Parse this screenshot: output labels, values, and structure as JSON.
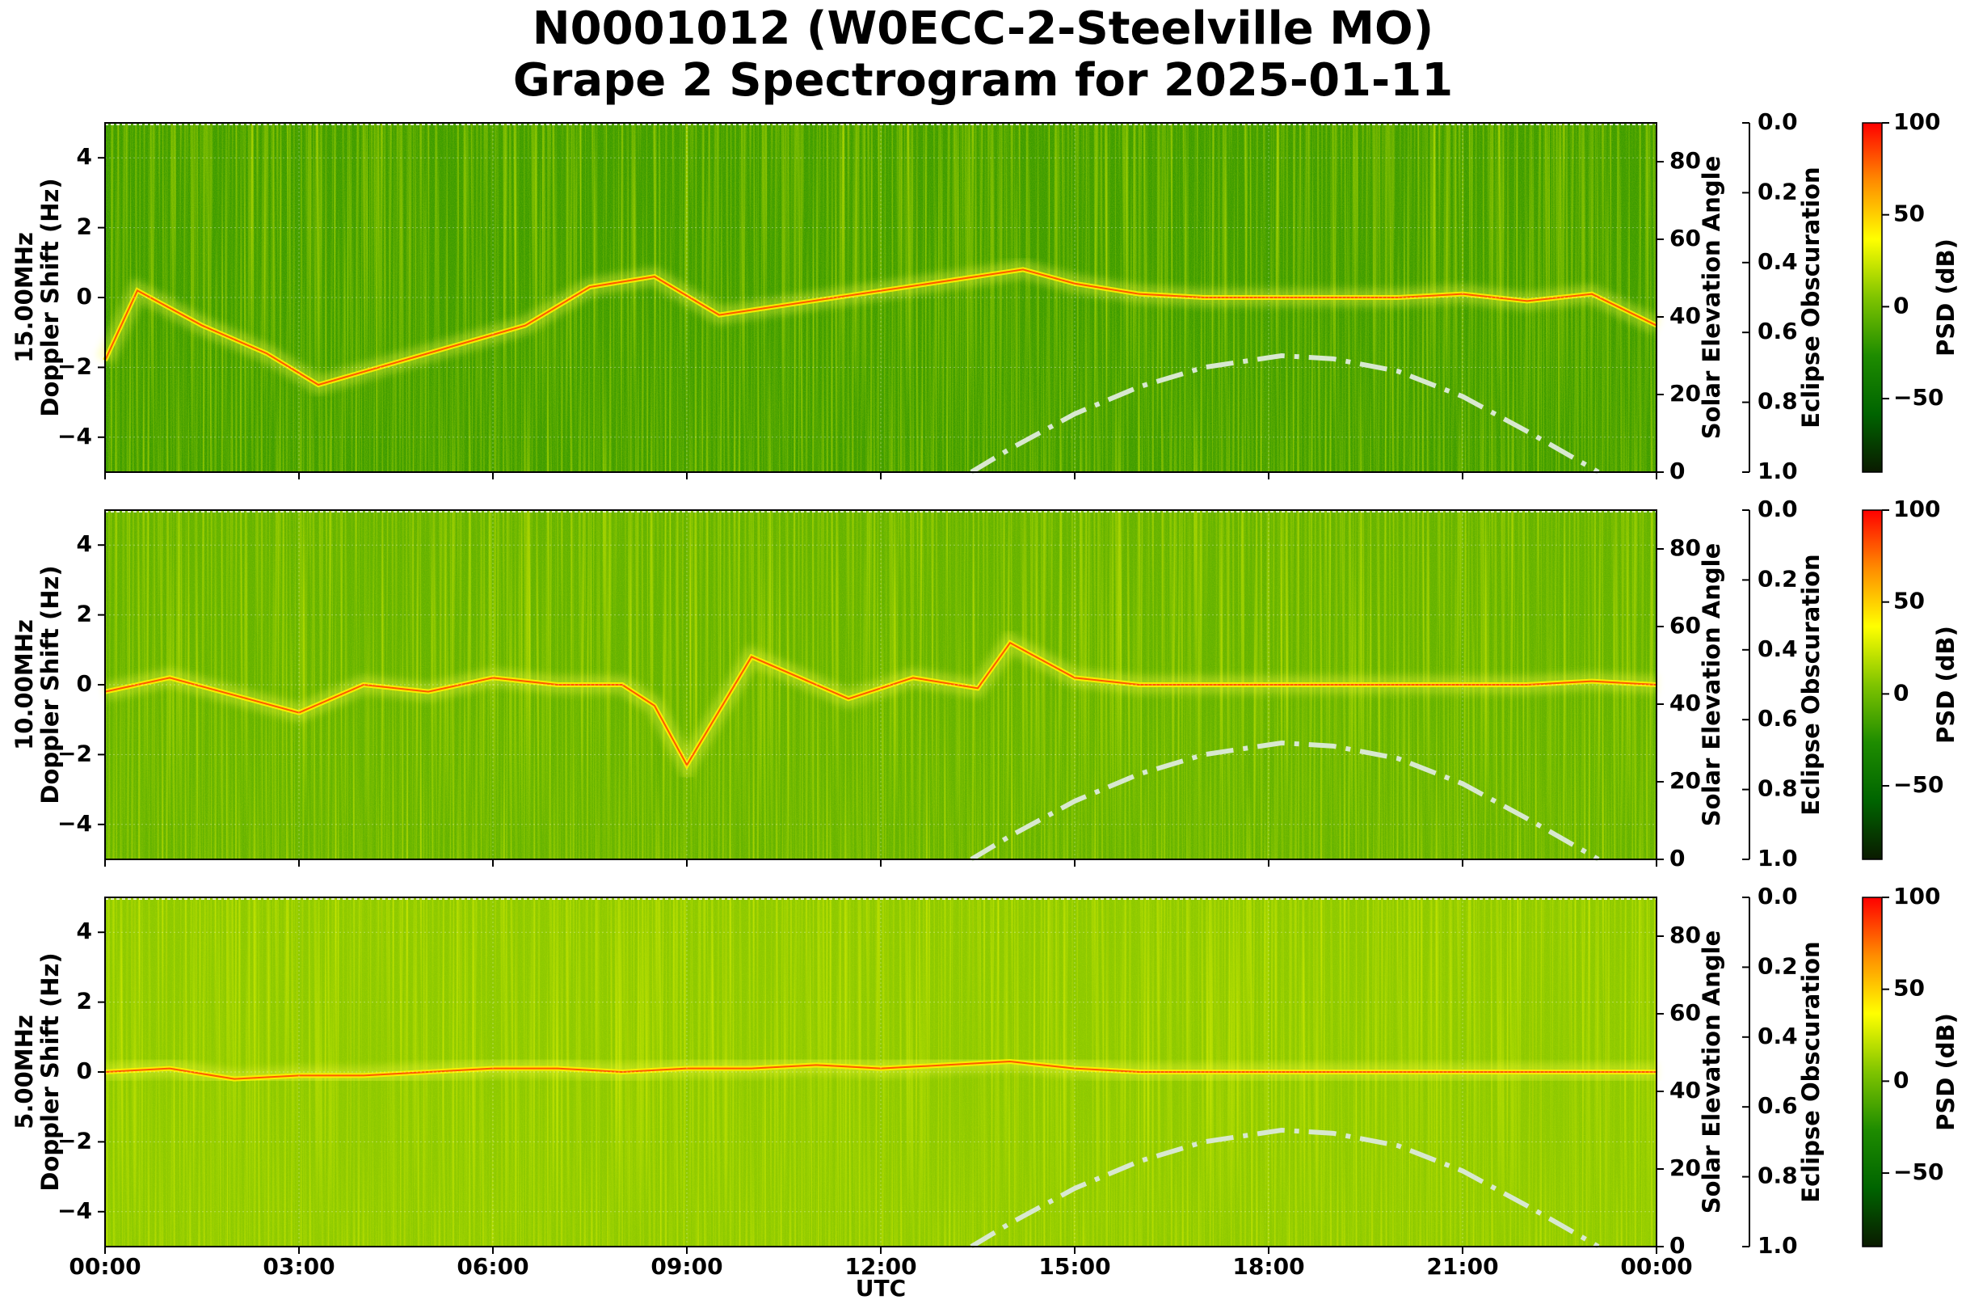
{
  "title_line1": "N0001012 (W0ECC-2-Steelville MO)",
  "title_line2": "Grape 2 Spectrogram for 2025-01-11",
  "chart_data": {
    "type": "heatmap",
    "title": "N0001012 (W0ECC-2-Steelville MO) Grape 2 Spectrogram for 2025-01-11",
    "xlabel": "UTC",
    "x_ticks": [
      "00:00",
      "03:00",
      "06:00",
      "09:00",
      "12:00",
      "15:00",
      "18:00",
      "21:00",
      "00:00"
    ],
    "xlim_hours": [
      0,
      24
    ],
    "ylim": [
      -5,
      5
    ],
    "y_ticks": [
      4,
      2,
      0,
      -2,
      -4
    ],
    "right_axis": {
      "label": "Solar Elevation Angle",
      "ylim": [
        0,
        90
      ],
      "ticks": [
        80,
        60,
        40,
        20,
        0
      ]
    },
    "eclipse_axis": {
      "label": "Eclipse Obscuration",
      "ylim": [
        1.0,
        0.0
      ],
      "ticks": [
        "0.0",
        "0.2",
        "0.4",
        "0.6",
        "0.8",
        "1.0"
      ]
    },
    "colorbar": {
      "label": "PSD (dB)",
      "ticks": [
        "100",
        "50",
        "0",
        "−50"
      ],
      "range": [
        -90,
        100
      ],
      "colors": [
        "#0a1a00",
        "#006400",
        "#1e8c00",
        "#7fc400",
        "#ffff00",
        "#ff8c00",
        "#ff0000"
      ]
    },
    "grid": true,
    "solar_elevation_curve": {
      "style": "dash-dot",
      "color": "#d8e8d0",
      "points": [
        [
          13.4,
          0
        ],
        [
          14,
          6
        ],
        [
          15,
          15
        ],
        [
          16,
          22
        ],
        [
          17,
          27
        ],
        [
          18,
          29.5
        ],
        [
          18.2,
          30
        ],
        [
          19,
          29.2
        ],
        [
          20,
          26
        ],
        [
          21,
          19.5
        ],
        [
          22,
          10.5
        ],
        [
          23,
          1
        ],
        [
          23.1,
          0
        ]
      ]
    },
    "panels": [
      {
        "frequency_label": "15.00MHz",
        "ylabel": "Doppler Shift (Hz)",
        "base_psd_db": -18,
        "trace": [
          [
            0,
            -1.8
          ],
          [
            0.5,
            0.2
          ],
          [
            1.5,
            -0.8
          ],
          [
            2.5,
            -1.6
          ],
          [
            3.3,
            -2.5
          ],
          [
            6.5,
            -0.8
          ],
          [
            7.5,
            0.3
          ],
          [
            8.5,
            0.6
          ],
          [
            9.5,
            -0.5
          ],
          [
            14.2,
            0.8
          ],
          [
            15,
            0.4
          ],
          [
            16,
            0.1
          ],
          [
            17,
            0
          ],
          [
            18,
            0
          ],
          [
            19,
            0
          ],
          [
            20,
            0
          ],
          [
            21,
            0.1
          ],
          [
            22,
            -0.1
          ],
          [
            23,
            0.1
          ],
          [
            24,
            -0.8
          ]
        ],
        "notes": [
          "high-noise vertical striping 19:30–24:00"
        ]
      },
      {
        "frequency_label": "10.00MHz",
        "ylabel": "Doppler Shift (Hz)",
        "base_psd_db": -5,
        "trace": [
          [
            0,
            -0.2
          ],
          [
            1,
            0.2
          ],
          [
            2,
            -0.3
          ],
          [
            3,
            -0.8
          ],
          [
            4,
            0
          ],
          [
            5,
            -0.2
          ],
          [
            6,
            0.2
          ],
          [
            7,
            0
          ],
          [
            8,
            0
          ],
          [
            8.5,
            -0.6
          ],
          [
            9,
            -2.3
          ],
          [
            10,
            0.8
          ],
          [
            11.5,
            -0.4
          ],
          [
            12.5,
            0.2
          ],
          [
            13.5,
            -0.1
          ],
          [
            14,
            1.2
          ],
          [
            15,
            0.2
          ],
          [
            16,
            0
          ],
          [
            17,
            0
          ],
          [
            18,
            0
          ],
          [
            19,
            0
          ],
          [
            20,
            0
          ],
          [
            21,
            0
          ],
          [
            22,
            0
          ],
          [
            23,
            0.1
          ],
          [
            24,
            0
          ]
        ],
        "notes": [
          "wideband noise 00:00–01:45 and 13:00–24:00"
        ]
      },
      {
        "frequency_label": "5.00MHz",
        "ylabel": "Doppler Shift (Hz)",
        "base_psd_db": 8,
        "trace": [
          [
            0,
            0
          ],
          [
            1,
            0.1
          ],
          [
            2,
            -0.2
          ],
          [
            3,
            -0.1
          ],
          [
            4,
            -0.1
          ],
          [
            5,
            0
          ],
          [
            6,
            0.1
          ],
          [
            7,
            0.1
          ],
          [
            8,
            0
          ],
          [
            9,
            0.1
          ],
          [
            10,
            0.1
          ],
          [
            11,
            0.2
          ],
          [
            12,
            0.1
          ],
          [
            13,
            0.2
          ],
          [
            14,
            0.3
          ],
          [
            15,
            0.1
          ],
          [
            16,
            0
          ],
          [
            17,
            0
          ],
          [
            18,
            0
          ],
          [
            19,
            0
          ],
          [
            20,
            0
          ],
          [
            21,
            0
          ],
          [
            22,
            0
          ],
          [
            23,
            0
          ],
          [
            24,
            0
          ]
        ],
        "notes": [
          "broadband activity 13:30–14:30",
          "quiet green region 15:00–23:00"
        ]
      }
    ]
  }
}
